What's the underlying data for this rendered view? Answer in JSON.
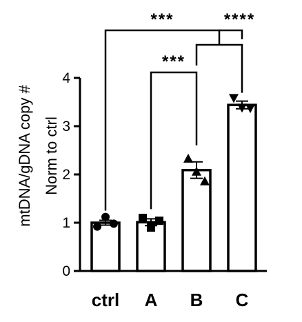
{
  "chart_data": {
    "type": "bar",
    "ylabel_line1": "mtDNA/gDNA copy #",
    "ylabel_line2": "Norm to ctrl",
    "categories": [
      "ctrl",
      "A",
      "B",
      "C"
    ],
    "values": [
      1.0,
      1.01,
      2.09,
      3.44
    ],
    "errors": [
      0.05,
      0.07,
      0.17,
      0.08
    ],
    "points": [
      {
        "marker": "circle",
        "values": [
          0.92,
          1.12,
          0.98
        ]
      },
      {
        "marker": "square",
        "values": [
          1.1,
          0.9,
          1.04
        ]
      },
      {
        "marker": "triangle-up",
        "values": [
          2.33,
          2.06,
          1.86
        ]
      },
      {
        "marker": "triangle-down",
        "values": [
          3.58,
          3.38,
          3.37
        ]
      }
    ],
    "ylim": [
      0,
      4
    ],
    "yticks": [
      "0",
      "1",
      "2",
      "3",
      "4"
    ],
    "significance": [
      {
        "label": "***",
        "from": 1,
        "to": 2
      },
      {
        "label": "***",
        "from": 0,
        "to": "2-3"
      },
      {
        "label": "****",
        "from": "2-3",
        "to": 3
      }
    ],
    "colors": {
      "bar_fill": "#ffffff",
      "stroke": "#000000"
    }
  }
}
